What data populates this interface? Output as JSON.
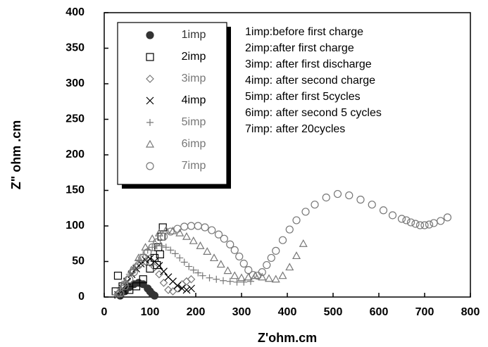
{
  "chart_data": {
    "type": "scatter",
    "xlabel": "Z'ohm.cm",
    "ylabel": "Z\" ohm .cm",
    "xlim": [
      0,
      800
    ],
    "xticks": [
      0,
      100,
      200,
      300,
      400,
      500,
      600,
      700,
      800
    ],
    "ylim": [
      0,
      400
    ],
    "yticks": [
      0,
      50,
      100,
      150,
      200,
      250,
      300,
      350,
      400
    ],
    "annotations": [
      "1imp:before first charge",
      "2imp:after first charge",
      "3imp: after first discharge",
      "4imp: after second charge",
      "5imp: after first 5cycles",
      "6imp: after second 5 cycles",
      "7imp: after 20cycles"
    ],
    "series": [
      {
        "name": "1imp",
        "color": "#333333",
        "marker": "filled-circle",
        "x": [
          35,
          45,
          55,
          65,
          75,
          85,
          95,
          100,
          105,
          110
        ],
        "values": [
          2,
          8,
          14,
          18,
          20,
          18,
          12,
          8,
          4,
          2
        ]
      },
      {
        "name": "2imp",
        "color": "#000000",
        "marker": "square",
        "x": [
          25,
          30,
          40,
          55,
          70,
          85,
          100,
          110,
          118,
          125,
          128,
          122,
          115
        ],
        "values": [
          8,
          30,
          15,
          10,
          15,
          25,
          40,
          55,
          70,
          85,
          98,
          60,
          45
        ]
      },
      {
        "name": "3imp",
        "color": "#777777",
        "marker": "diamond",
        "x": [
          30,
          40,
          50,
          60,
          70,
          80,
          90,
          100,
          110,
          120,
          130,
          140,
          150,
          160,
          170,
          180,
          190
        ],
        "values": [
          5,
          15,
          25,
          35,
          42,
          47,
          50,
          48,
          42,
          32,
          20,
          10,
          8,
          12,
          18,
          22,
          25
        ]
      },
      {
        "name": "4imp",
        "color": "#000000",
        "marker": "cross",
        "x": [
          30,
          40,
          50,
          60,
          70,
          80,
          90,
          100,
          110,
          120,
          130,
          140,
          150,
          160,
          170,
          180,
          190
        ],
        "values": [
          3,
          12,
          22,
          32,
          40,
          47,
          52,
          54,
          50,
          44,
          36,
          28,
          22,
          16,
          12,
          10,
          12
        ]
      },
      {
        "name": "5imp",
        "color": "#777777",
        "marker": "plus",
        "x": [
          25,
          35,
          45,
          55,
          65,
          75,
          85,
          95,
          105,
          115,
          125,
          135,
          145,
          155,
          165,
          175,
          185,
          195,
          205,
          215,
          230,
          245,
          260,
          275,
          290,
          305,
          320
        ],
        "values": [
          3,
          12,
          22,
          32,
          42,
          52,
          60,
          66,
          70,
          72,
          72,
          70,
          66,
          61,
          55,
          49,
          43,
          38,
          34,
          30,
          27,
          25,
          23,
          22,
          21,
          21,
          22
        ]
      },
      {
        "name": "6imp",
        "color": "#777777",
        "marker": "triangle",
        "x": [
          30,
          45,
          60,
          75,
          90,
          105,
          120,
          135,
          150,
          165,
          180,
          195,
          210,
          225,
          240,
          255,
          270,
          285,
          300,
          315,
          330,
          345,
          360,
          375,
          390,
          405,
          420,
          435
        ],
        "values": [
          5,
          20,
          38,
          55,
          70,
          82,
          90,
          94,
          93,
          90,
          85,
          79,
          72,
          64,
          55,
          46,
          37,
          30,
          27,
          28,
          30,
          28,
          26,
          25,
          30,
          42,
          58,
          75
        ]
      },
      {
        "name": "7imp",
        "color": "#777777",
        "marker": "circle",
        "x": [
          35,
          45,
          55,
          65,
          75,
          85,
          95,
          105,
          115,
          130,
          145,
          160,
          175,
          190,
          205,
          220,
          235,
          250,
          262,
          275,
          285,
          295,
          305,
          315,
          325,
          335,
          345,
          355,
          365,
          375,
          390,
          405,
          420,
          440,
          460,
          485,
          510,
          535,
          560,
          585,
          610,
          630,
          650,
          660,
          670,
          680,
          690,
          700,
          710,
          720,
          735,
          750
        ],
        "values": [
          5,
          15,
          25,
          35,
          45,
          55,
          63,
          70,
          77,
          85,
          92,
          96,
          99,
          100,
          100,
          98,
          94,
          88,
          82,
          74,
          66,
          57,
          47,
          38,
          31,
          30,
          35,
          45,
          55,
          65,
          80,
          95,
          108,
          120,
          130,
          140,
          145,
          143,
          137,
          130,
          122,
          115,
          110,
          108,
          105,
          103,
          101,
          101,
          102,
          104,
          107,
          112
        ]
      }
    ]
  }
}
